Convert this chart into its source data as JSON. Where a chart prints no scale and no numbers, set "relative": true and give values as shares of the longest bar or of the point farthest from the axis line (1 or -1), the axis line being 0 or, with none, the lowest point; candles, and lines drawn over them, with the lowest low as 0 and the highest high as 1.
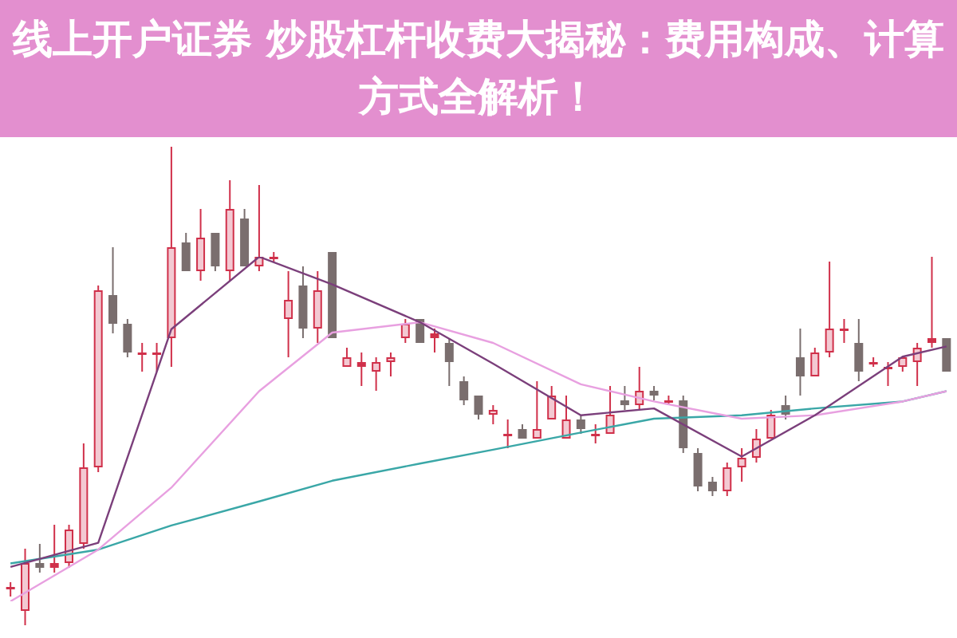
{
  "chart_data": [
    {
      "type": "candlestick",
      "title": "线上开户证券 炒股杠杆收费大揭秘：费用构成、计算方式全解析！",
      "relative": true,
      "legend": false,
      "categories": [
        null,
        null,
        null,
        null,
        null,
        null,
        null,
        null,
        null,
        null,
        null,
        null,
        null,
        null,
        null,
        null,
        null,
        null,
        null,
        null,
        null,
        null,
        null,
        null,
        null,
        null,
        null,
        null,
        null,
        null,
        null,
        null,
        null,
        null,
        null,
        null,
        null,
        null,
        null,
        null,
        null,
        null,
        null,
        null,
        null,
        null,
        null,
        null,
        null,
        null,
        null,
        null,
        null,
        null,
        null,
        null,
        null,
        null,
        null,
        null,
        null,
        null,
        null,
        null,
        null
      ],
      "ohlc": [
        [
          0.08,
          0.09,
          0.06,
          0.08
        ],
        [
          0.03,
          0.16,
          0,
          0.13
        ],
        [
          0.13,
          0.17,
          0.11,
          0.12
        ],
        [
          0.12,
          0.21,
          0.11,
          0.13
        ],
        [
          0.13,
          0.21,
          0.12,
          0.2
        ],
        [
          0.17,
          0.38,
          0.16,
          0.33
        ],
        [
          0.33,
          0.71,
          0.32,
          0.7
        ],
        [
          0.69,
          0.79,
          0.61,
          0.63
        ],
        [
          0.63,
          0.64,
          0.56,
          0.57
        ],
        [
          0.57,
          0.59,
          0.53,
          0.57
        ],
        [
          0.57,
          0.59,
          0.53,
          0.57
        ],
        [
          0.6,
          1.0,
          0.54,
          0.79
        ],
        [
          0.8,
          0.82,
          0.74,
          0.74
        ],
        [
          0.74,
          0.87,
          0.72,
          0.81
        ],
        [
          0.82,
          0.82,
          0.74,
          0.75
        ],
        [
          0.74,
          0.93,
          0.72,
          0.87
        ],
        [
          0.85,
          0.87,
          0.75,
          0.75
        ],
        [
          0.75,
          0.92,
          0.74,
          0.77
        ],
        [
          0.77,
          0.78,
          0.76,
          0.77
        ],
        [
          0.64,
          0.74,
          0.56,
          0.68
        ],
        [
          0.71,
          0.75,
          0.6,
          0.62
        ],
        [
          0.62,
          0.74,
          0.59,
          0.7
        ],
        [
          0.78,
          0.78,
          0.6,
          0.6
        ],
        [
          0.54,
          0.58,
          0.54,
          0.56
        ],
        [
          0.54,
          0.57,
          0.5,
          0.55
        ],
        [
          0.53,
          0.56,
          0.49,
          0.55
        ],
        [
          0.55,
          0.57,
          0.52,
          0.56
        ],
        [
          0.6,
          0.64,
          0.59,
          0.63
        ],
        [
          0.64,
          0.64,
          0.59,
          0.59
        ],
        [
          0.6,
          0.62,
          0.57,
          0.61
        ],
        [
          0.59,
          0.6,
          0.5,
          0.55
        ],
        [
          0.51,
          0.52,
          0.46,
          0.47
        ],
        [
          0.48,
          0.48,
          0.43,
          0.44
        ],
        [
          0.44,
          0.46,
          0.42,
          0.45
        ],
        [
          0.4,
          0.43,
          0.37,
          0.4
        ],
        [
          0.41,
          0.42,
          0.39,
          0.39
        ],
        [
          0.39,
          0.51,
          0.39,
          0.41
        ],
        [
          0.43,
          0.5,
          0.43,
          0.48
        ],
        [
          0.39,
          0.48,
          0.39,
          0.43
        ],
        [
          0.43,
          0.44,
          0.4,
          0.41
        ],
        [
          0.4,
          0.42,
          0.38,
          0.4
        ],
        [
          0.4,
          0.5,
          0.4,
          0.44
        ],
        [
          0.47,
          0.5,
          0.45,
          0.46
        ],
        [
          0.46,
          0.54,
          0.45,
          0.49
        ],
        [
          0.49,
          0.5,
          0.47,
          0.48
        ],
        [
          0.47,
          0.48,
          0.46,
          0.47
        ],
        [
          0.47,
          0.48,
          0.36,
          0.37
        ],
        [
          0.36,
          0.37,
          0.28,
          0.29
        ],
        [
          0.3,
          0.31,
          0.27,
          0.28
        ],
        [
          0.28,
          0.34,
          0.27,
          0.33
        ],
        [
          0.33,
          0.37,
          0.3,
          0.35
        ],
        [
          0.35,
          0.41,
          0.34,
          0.39
        ],
        [
          0.39,
          0.45,
          0.39,
          0.44
        ],
        [
          0.46,
          0.48,
          0.43,
          0.44
        ],
        [
          0.56,
          0.62,
          0.48,
          0.52
        ],
        [
          0.52,
          0.58,
          0.52,
          0.57
        ],
        [
          0.57,
          0.76,
          0.56,
          0.62
        ],
        [
          0.62,
          0.64,
          0.59,
          0.62
        ],
        [
          0.59,
          0.64,
          0.51,
          0.53
        ],
        [
          0.55,
          0.56,
          0.54,
          0.55
        ],
        [
          0.54,
          0.55,
          0.5,
          0.54
        ],
        [
          0.54,
          0.56,
          0.53,
          0.56
        ],
        [
          0.55,
          0.59,
          0.5,
          0.58
        ],
        [
          0.59,
          0.77,
          0.58,
          0.6
        ],
        [
          0.6,
          0.6,
          0.53,
          0.53
        ]
      ]
    },
    {
      "type": "line",
      "relative": true,
      "legend": false,
      "marker": "none",
      "categories": [
        null,
        null,
        null,
        null,
        null,
        null,
        null,
        null,
        null,
        null,
        null,
        null,
        null,
        null,
        null,
        null,
        null,
        null,
        null,
        null,
        null,
        null,
        null,
        null,
        null,
        null,
        null,
        null,
        null,
        null,
        null,
        null,
        null,
        null,
        null,
        null,
        null,
        null,
        null,
        null,
        null,
        null,
        null,
        null,
        null,
        null,
        null,
        null,
        null,
        null,
        null,
        null,
        null,
        null,
        null,
        null,
        null,
        null,
        null,
        null,
        null,
        null,
        null,
        null,
        null
      ],
      "series": [
        {
          "type": "line",
          "color": "#7b3f7b",
          "values": [
            0.1,
            null,
            null,
            null,
            null,
            null,
            0.17,
            null,
            null,
            null,
            null,
            0.79,
            null,
            null,
            null,
            null,
            null,
            1,
            null,
            null,
            null,
            null,
            0.92,
            null,
            null,
            null,
            null,
            null,
            0.81,
            null,
            null,
            null,
            null,
            0.69,
            null,
            null,
            null,
            null,
            null,
            0.54,
            null,
            null,
            null,
            null,
            0.56,
            null,
            null,
            null,
            null,
            null,
            0.42,
            null,
            null,
            null,
            null,
            0.54,
            null,
            null,
            null,
            null,
            null,
            0.71,
            null,
            null,
            0.74
          ]
        },
        {
          "type": "line",
          "color": "#e8a0e0",
          "values": [
            0,
            null,
            null,
            null,
            null,
            null,
            0.15,
            null,
            null,
            null,
            null,
            0.33,
            null,
            null,
            null,
            null,
            null,
            0.61,
            null,
            null,
            null,
            null,
            0.78,
            null,
            null,
            null,
            null,
            null,
            0.81,
            null,
            null,
            null,
            null,
            0.75,
            null,
            null,
            null,
            null,
            null,
            0.63,
            null,
            null,
            null,
            null,
            0.58,
            null,
            null,
            null,
            null,
            null,
            0.53,
            null,
            null,
            null,
            null,
            0.54,
            null,
            null,
            null,
            null,
            null,
            0.58,
            null,
            null,
            0.61
          ]
        },
        {
          "type": "line",
          "color": "#3aa7a7",
          "values": [
            0.11,
            null,
            null,
            null,
            null,
            null,
            0.15,
            null,
            null,
            null,
            null,
            0.22,
            null,
            null,
            null,
            null,
            null,
            0.29,
            null,
            null,
            null,
            null,
            0.35,
            null,
            null,
            null,
            null,
            null,
            0.4,
            null,
            null,
            null,
            null,
            0.44,
            null,
            null,
            null,
            null,
            null,
            0.49,
            null,
            null,
            null,
            null,
            0.53,
            null,
            null,
            null,
            null,
            null,
            0.54,
            null,
            null,
            null,
            null,
            0.56,
            null,
            null,
            null,
            null,
            null,
            0.58,
            null,
            null,
            0.61
          ]
        }
      ]
    }
  ]
}
